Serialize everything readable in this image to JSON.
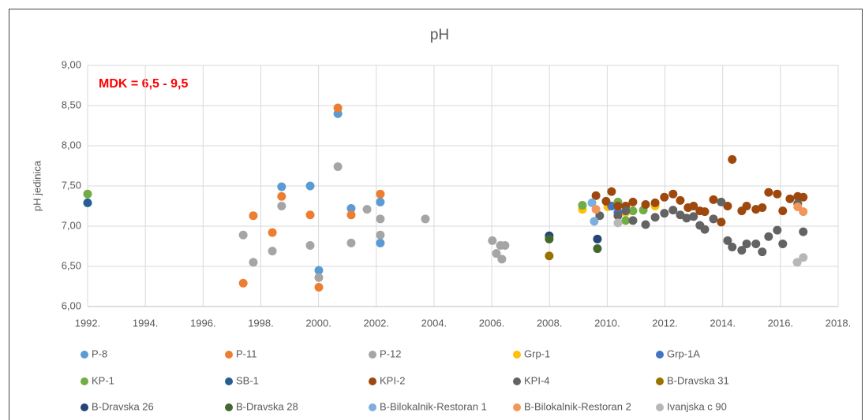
{
  "chart_data": {
    "type": "scatter",
    "title": "pH",
    "y_label": "pH jedinica",
    "annotation": "MDK = 6,5 - 9,5",
    "grid": true,
    "legend": "bottom",
    "xlim": [
      1992,
      2018
    ],
    "xticks": [
      {
        "value": 1992,
        "label": "1992."
      },
      {
        "value": 1994,
        "label": "1994."
      },
      {
        "value": 1996,
        "label": "1996."
      },
      {
        "value": 1998,
        "label": "1998."
      },
      {
        "value": 2000,
        "label": "2000."
      },
      {
        "value": 2002,
        "label": "2002."
      },
      {
        "value": 2004,
        "label": "2004."
      },
      {
        "value": 2006,
        "label": "2006."
      },
      {
        "value": 2008,
        "label": "2008."
      },
      {
        "value": 2010,
        "label": "2010."
      },
      {
        "value": 2012,
        "label": "2012."
      },
      {
        "value": 2014,
        "label": "2014."
      },
      {
        "value": 2016,
        "label": "2016."
      },
      {
        "value": 2018,
        "label": "2018."
      }
    ],
    "ylim": [
      6,
      9
    ],
    "yticks": [
      {
        "value": 6,
        "label": "6,00"
      },
      {
        "value": 6.5,
        "label": "6,50"
      },
      {
        "value": 7,
        "label": "7,00"
      },
      {
        "value": 7.5,
        "label": "7,50"
      },
      {
        "value": 8,
        "label": "8,00"
      },
      {
        "value": 8.5,
        "label": "8,50"
      },
      {
        "value": 9,
        "label": "9,00"
      }
    ],
    "series": [
      {
        "name": "P-8",
        "color": "#5b9bd5",
        "x": [
          1998.72,
          1999.71,
          2000.01,
          2000.67,
          2001.13,
          2002.14,
          2002.14
        ],
        "values": [
          7.49,
          7.5,
          6.45,
          8.4,
          7.22,
          7.3,
          6.79
        ]
      },
      {
        "name": "P-11",
        "color": "#ed7d31",
        "x": [
          1997.39,
          1997.74,
          1998.4,
          1998.72,
          1999.71,
          2000.01,
          2000.67,
          2001.13,
          2002.14
        ],
        "values": [
          6.29,
          7.13,
          6.92,
          7.37,
          7.14,
          6.24,
          8.47,
          7.14,
          7.4
        ]
      },
      {
        "name": "P-12",
        "color": "#a5a5a5",
        "x": [
          1997.39,
          1997.74,
          1998.4,
          1998.72,
          1999.71,
          2000.01,
          2000.67,
          2001.13,
          2001.68,
          2002.14,
          2002.14,
          2003.7,
          2006.02,
          2006.16,
          2006.3,
          2006.35,
          2006.46
        ],
        "values": [
          6.89,
          6.55,
          6.69,
          7.25,
          6.76,
          6.36,
          7.74,
          6.79,
          7.21,
          7.09,
          6.89,
          7.09,
          6.82,
          6.66,
          6.76,
          6.59,
          6.76
        ]
      },
      {
        "name": "Grp-1",
        "color": "#ffc000",
        "x": [
          2009.14,
          2010.02,
          2010.64,
          2011.66
        ],
        "values": [
          7.21,
          7.24,
          7.17,
          7.25
        ]
      },
      {
        "name": "Grp-1A",
        "color": "#4472c4",
        "x": [
          2010.15,
          2010.37
        ],
        "values": [
          7.25,
          7.17
        ]
      },
      {
        "name": "KP-1",
        "color": "#70ad47",
        "x": [
          1992,
          2009.14,
          2010.37,
          2010.64,
          2010.89,
          2011.25
        ],
        "values": [
          7.4,
          7.26,
          7.3,
          7.07,
          7.19,
          7.2
        ]
      },
      {
        "name": "SB-1",
        "color": "#255e91",
        "x": [
          1992
        ],
        "values": [
          7.29
        ]
      },
      {
        "name": "KPI-2",
        "color": "#9e480e",
        "x": [
          2009.61,
          2009.96,
          2010.15,
          2010.37,
          2010.64,
          2010.89,
          2011.33,
          2011.66,
          2011.98,
          2012.28,
          2012.53,
          2012.8,
          2012.99,
          2013.21,
          2013.38,
          2013.68,
          2013.95,
          2014.17,
          2014.33,
          2014.66,
          2014.83,
          2015.15,
          2015.37,
          2015.59,
          2015.89,
          2016.08,
          2016.33,
          2016.6,
          2016.79
        ],
        "values": [
          7.38,
          7.31,
          7.43,
          7.25,
          7.25,
          7.3,
          7.27,
          7.29,
          7.36,
          7.4,
          7.32,
          7.23,
          7.25,
          7.19,
          7.18,
          7.33,
          7.05,
          7.25,
          7.83,
          7.19,
          7.25,
          7.21,
          7.23,
          7.42,
          7.4,
          7.19,
          7.34,
          7.37,
          7.36
        ]
      },
      {
        "name": "KPI-4",
        "color": "#636363",
        "x": [
          2009.74,
          2010.37,
          2010.64,
          2010.89,
          2011.33,
          2011.66,
          2011.98,
          2012.28,
          2012.53,
          2012.75,
          2012.99,
          2013.21,
          2013.38,
          2013.68,
          2013.95,
          2014.17,
          2014.33,
          2014.66,
          2014.83,
          2015.15,
          2015.37,
          2015.59,
          2015.89,
          2016.08,
          2016.6,
          2016.79
        ],
        "values": [
          7.13,
          7.13,
          7.19,
          7.07,
          7.02,
          7.11,
          7.16,
          7.2,
          7.14,
          7.1,
          7.12,
          7.01,
          6.96,
          7.09,
          7.3,
          6.82,
          6.74,
          6.7,
          6.78,
          6.78,
          6.68,
          6.87,
          6.95,
          6.78,
          7.28,
          6.93
        ]
      },
      {
        "name": "B-Dravska 31",
        "color": "#997300",
        "x": [
          2007.99
        ],
        "values": [
          6.63
        ]
      },
      {
        "name": "B-Dravska 26",
        "color": "#264478",
        "x": [
          2007.99,
          2009.66
        ],
        "values": [
          6.88,
          6.84
        ]
      },
      {
        "name": "B-Dravska 28",
        "color": "#43682b",
        "x": [
          2007.99,
          2009.66
        ],
        "values": [
          6.84,
          6.72
        ]
      },
      {
        "name": "B-Bilokalnik-Restoran 1",
        "color": "#7cafdd",
        "x": [
          2009.55,
          2009.47
        ],
        "values": [
          7.06,
          7.29
        ]
      },
      {
        "name": "B-Bilokalnik-Restoran 2",
        "color": "#f1975a",
        "x": [
          2009.61,
          2016.79,
          2016.6
        ],
        "values": [
          7.21,
          7.18,
          7.24
        ]
      },
      {
        "name": "Ivanjska c 90",
        "color": "#b7b7b7",
        "x": [
          2010.37,
          2016.58,
          2016.79
        ],
        "values": [
          7.04,
          6.55,
          6.61
        ]
      }
    ]
  }
}
